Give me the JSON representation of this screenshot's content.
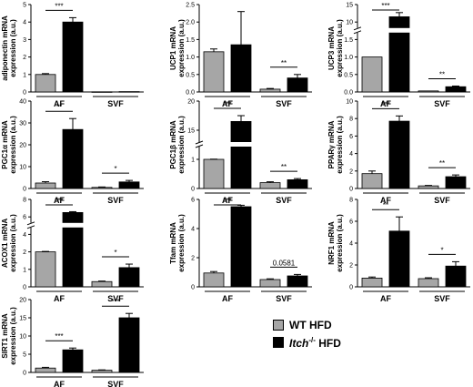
{
  "colors": {
    "wt": "#a6a6a6",
    "ko": "#000000",
    "axis": "#000000"
  },
  "legend": {
    "items": [
      {
        "key": "wt",
        "label": "WT HFD"
      },
      {
        "key": "ko",
        "label_italic": "Itch",
        "label_sup": "-/-",
        "label_rest": " HFD"
      }
    ]
  },
  "chart_data": [
    {
      "type": "bar",
      "ylabel": "adiponectin mRNA\nexpression (a.u.)",
      "ylim": [
        0,
        5
      ],
      "yticks": [
        0,
        1,
        2,
        3,
        4,
        5
      ],
      "ytick_labels": [
        "0",
        "1",
        "2",
        "3",
        "4",
        "5"
      ],
      "categories": [
        "AF",
        "SVF"
      ],
      "series": [
        {
          "name": "WT HFD",
          "values": [
            1.0,
            0.01
          ],
          "errors": [
            0.05,
            0
          ]
        },
        {
          "name": "Itch-/- HFD",
          "values": [
            4.0,
            0.02
          ],
          "errors": [
            0.25,
            0
          ]
        }
      ],
      "annotations": [
        {
          "category": "AF",
          "text": "***"
        }
      ]
    },
    {
      "type": "bar",
      "ylabel": "UCP1 mRNA\nexpression (a.u.)",
      "ylim": [
        0,
        2.5
      ],
      "yticks": [
        0,
        0.5,
        1.0,
        1.5,
        2.0,
        2.5
      ],
      "ytick_labels": [
        "0.0",
        "0.5",
        "1.0",
        "1.5",
        "2.0",
        "2.5"
      ],
      "categories": [
        "AF",
        "SVF"
      ],
      "series": [
        {
          "name": "WT HFD",
          "values": [
            1.15,
            0.08
          ],
          "errors": [
            0.08,
            0.02
          ]
        },
        {
          "name": "Itch-/- HFD",
          "values": [
            1.35,
            0.4
          ],
          "errors": [
            0.95,
            0.1
          ]
        }
      ],
      "annotations": [
        {
          "category": "SVF",
          "text": "**"
        }
      ]
    },
    {
      "type": "bar",
      "ylabel": "UCP3 mRNA\nexpression (a.u.)",
      "ylim": [
        0,
        15
      ],
      "yticks": [
        0,
        0.5,
        1.0,
        1.5,
        10,
        15
      ],
      "ytick_labels": [
        "0.0",
        "0.5",
        "1.0",
        "1.5",
        "10",
        "15"
      ],
      "axis_break": true,
      "categories": [
        "AF",
        "SVF"
      ],
      "series": [
        {
          "name": "WT HFD",
          "values": [
            1.0,
            0.03
          ],
          "errors": [
            0,
            0
          ]
        },
        {
          "name": "Itch-/- HFD",
          "values": [
            11.5,
            0.15
          ],
          "errors": [
            1.2,
            0.02
          ]
        }
      ],
      "annotations": [
        {
          "category": "AF",
          "text": "***"
        },
        {
          "category": "SVF",
          "text": "**"
        }
      ]
    },
    {
      "type": "bar",
      "ylabel": "PGC1α mRNA\nexpression (a.u.)",
      "ylim": [
        0,
        40
      ],
      "yticks": [
        0,
        10,
        20,
        30,
        40
      ],
      "ytick_labels": [
        "0",
        "10",
        "20",
        "30",
        "40"
      ],
      "categories": [
        "AF",
        "SVF"
      ],
      "series": [
        {
          "name": "WT HFD",
          "values": [
            2.5,
            0.5
          ],
          "errors": [
            0.6,
            0.2
          ]
        },
        {
          "name": "Itch-/- HFD",
          "values": [
            27,
            3
          ],
          "errors": [
            5,
            0.7
          ]
        }
      ],
      "annotations": [
        {
          "category": "AF",
          "text": "**"
        },
        {
          "category": "SVF",
          "text": "*"
        }
      ]
    },
    {
      "type": "bar",
      "ylabel": "PGC1β mRNA\nexpression (a.u.)",
      "ylim": [
        0,
        20
      ],
      "yticks": [
        0,
        1,
        15,
        20
      ],
      "ytick_labels": [
        "0",
        "1",
        "15",
        "20"
      ],
      "axis_break": true,
      "categories": [
        "AF",
        "SVF"
      ],
      "series": [
        {
          "name": "WT HFD",
          "values": [
            1.0,
            0.2
          ],
          "errors": [
            0.1,
            0.03
          ]
        },
        {
          "name": "Itch-/- HFD",
          "values": [
            16.5,
            0.3
          ],
          "errors": [
            1,
            0.04
          ]
        }
      ],
      "annotations": [
        {
          "category": "AF",
          "text": "***"
        },
        {
          "category": "SVF",
          "text": "**"
        }
      ]
    },
    {
      "type": "bar",
      "ylabel": "PPARγ mRNA\nexpression (a.u.)",
      "ylim": [
        0,
        10
      ],
      "yticks": [
        0,
        2,
        4,
        6,
        8,
        10
      ],
      "ytick_labels": [
        "0",
        "2",
        "4",
        "6",
        "8",
        "10"
      ],
      "categories": [
        "AF",
        "SVF"
      ],
      "series": [
        {
          "name": "WT HFD",
          "values": [
            1.7,
            0.3
          ],
          "errors": [
            0.3,
            0.05
          ]
        },
        {
          "name": "Itch-/- HFD",
          "values": [
            7.7,
            1.35
          ],
          "errors": [
            0.6,
            0.2
          ]
        }
      ],
      "annotations": [
        {
          "category": "AF",
          "text": "***"
        },
        {
          "category": "SVF",
          "text": "**"
        }
      ]
    },
    {
      "type": "bar",
      "ylabel": "ACOX1 mRNA\nexpression (a.u.)",
      "ylim": [
        0,
        8
      ],
      "yticks": [
        0,
        1,
        2,
        4,
        6,
        8
      ],
      "ytick_labels": [
        "0",
        "1",
        "2",
        "4",
        "6",
        "8"
      ],
      "axis_break": true,
      "categories": [
        "AF",
        "SVF"
      ],
      "series": [
        {
          "name": "WT HFD",
          "values": [
            2.0,
            0.3
          ],
          "errors": [
            0.05,
            0.03
          ]
        },
        {
          "name": "Itch-/- HFD",
          "values": [
            6.5,
            1.1
          ],
          "errors": [
            0.1,
            0.2
          ]
        }
      ],
      "annotations": [
        {
          "category": "AF",
          "text": "***"
        },
        {
          "category": "SVF",
          "text": "*"
        }
      ]
    },
    {
      "type": "bar",
      "ylabel": "Tfam mRNA\nexpression (a.u.)",
      "ylim": [
        0,
        6
      ],
      "yticks": [
        0,
        2,
        4,
        6
      ],
      "ytick_labels": [
        "0",
        "2",
        "4",
        "6"
      ],
      "categories": [
        "AF",
        "SVF"
      ],
      "series": [
        {
          "name": "WT HFD",
          "values": [
            0.95,
            0.5
          ],
          "errors": [
            0.1,
            0.05
          ]
        },
        {
          "name": "Itch-/- HFD",
          "values": [
            5.5,
            0.75
          ],
          "errors": [
            0.1,
            0.1
          ]
        }
      ],
      "annotations": [
        {
          "category": "AF",
          "text": "***"
        },
        {
          "category": "SVF",
          "text": "0.0581"
        }
      ]
    },
    {
      "type": "bar",
      "ylabel": "NRF1 mRNA\nexpression (a.u.)",
      "ylim": [
        0,
        8
      ],
      "yticks": [
        0,
        2,
        4,
        6,
        8
      ],
      "ytick_labels": [
        "0",
        "2",
        "4",
        "6",
        "8"
      ],
      "categories": [
        "AF",
        "SVF"
      ],
      "series": [
        {
          "name": "WT HFD",
          "values": [
            0.8,
            0.75
          ],
          "errors": [
            0.1,
            0.08
          ]
        },
        {
          "name": "Itch-/- HFD",
          "values": [
            5.1,
            1.9
          ],
          "errors": [
            1.3,
            0.4
          ]
        }
      ],
      "annotations": [
        {
          "category": "AF",
          "text": "**"
        },
        {
          "category": "SVF",
          "text": "*"
        }
      ]
    },
    {
      "type": "bar",
      "ylabel": "SIRT1 mRNA\nexpression (a.u.)",
      "ylim": [
        0,
        20
      ],
      "yticks": [
        0,
        5,
        10,
        15,
        20
      ],
      "ytick_labels": [
        "0",
        "5",
        "10",
        "15",
        "20"
      ],
      "categories": [
        "AF",
        "SVF"
      ],
      "series": [
        {
          "name": "WT HFD",
          "values": [
            1.2,
            0.6
          ],
          "errors": [
            0.2,
            0.1
          ]
        },
        {
          "name": "Itch-/- HFD",
          "values": [
            6.2,
            15
          ],
          "errors": [
            0.5,
            1.2
          ]
        }
      ],
      "annotations": [
        {
          "category": "AF",
          "text": "***"
        },
        {
          "category": "SVF",
          "text": "***"
        }
      ]
    }
  ]
}
